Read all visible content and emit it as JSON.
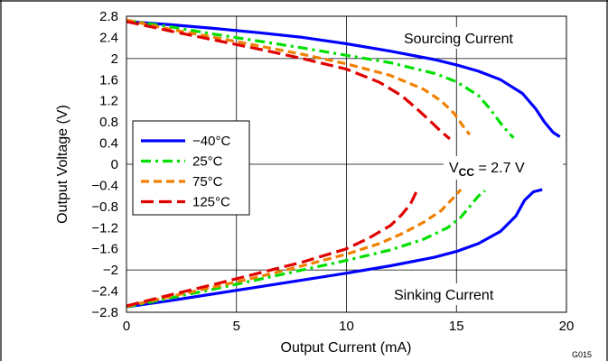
{
  "chart_data": {
    "type": "line",
    "xlabel": "Output Current (mA)",
    "ylabel": "Output Voltage (V)",
    "xlim": [
      0,
      20
    ],
    "ylim": [
      -2.8,
      2.8
    ],
    "x_ticks": [
      "0",
      "5",
      "10",
      "15",
      "20"
    ],
    "y_ticks": [
      "2.8",
      "2.4",
      "2",
      "1.6",
      "1.2",
      "0.8",
      "0.4",
      "0",
      "−0.4",
      "−0.8",
      "−1.2",
      "−1.6",
      "−2",
      "−2.4",
      "−2.8"
    ],
    "grid": true,
    "legend_position": "left",
    "annotations": {
      "sourcing": "Sourcing Current",
      "sinking": "Sinking Current",
      "vcc_prefix": "V",
      "vcc_sub": "CC",
      "vcc_value": " =  2.7 V",
      "figure_code": "G015"
    },
    "series": [
      {
        "name": "−40°C",
        "color": "#0000ff",
        "dash": "solid",
        "sourcing": [
          [
            0,
            2.7
          ],
          [
            2,
            2.64
          ],
          [
            4,
            2.57
          ],
          [
            6,
            2.49
          ],
          [
            8,
            2.4
          ],
          [
            10,
            2.28
          ],
          [
            12,
            2.14
          ],
          [
            14,
            1.98
          ],
          [
            15,
            1.88
          ],
          [
            16,
            1.76
          ],
          [
            17,
            1.6
          ],
          [
            18,
            1.34
          ],
          [
            18.6,
            1.05
          ],
          [
            19,
            0.8
          ],
          [
            19.4,
            0.6
          ],
          [
            19.7,
            0.52
          ]
        ],
        "sinking": [
          [
            0,
            -2.7
          ],
          [
            2,
            -2.58
          ],
          [
            4,
            -2.45
          ],
          [
            6,
            -2.32
          ],
          [
            8,
            -2.19
          ],
          [
            10,
            -2.06
          ],
          [
            12,
            -1.92
          ],
          [
            14,
            -1.76
          ],
          [
            15,
            -1.65
          ],
          [
            16,
            -1.5
          ],
          [
            17,
            -1.27
          ],
          [
            17.7,
            -0.98
          ],
          [
            18.1,
            -0.68
          ],
          [
            18.5,
            -0.52
          ],
          [
            18.9,
            -0.48
          ]
        ]
      },
      {
        "name": "25°C",
        "color": "#00e000",
        "dash": "dash-dot",
        "sourcing": [
          [
            0,
            2.72
          ],
          [
            2,
            2.6
          ],
          [
            4,
            2.46
          ],
          [
            6,
            2.33
          ],
          [
            8,
            2.2
          ],
          [
            10,
            2.06
          ],
          [
            12,
            1.92
          ],
          [
            14,
            1.72
          ],
          [
            15,
            1.56
          ],
          [
            16,
            1.3
          ],
          [
            16.5,
            1.06
          ],
          [
            17,
            0.78
          ],
          [
            17.4,
            0.58
          ],
          [
            17.6,
            0.5
          ]
        ],
        "sinking": [
          [
            0,
            -2.7
          ],
          [
            2,
            -2.53
          ],
          [
            4,
            -2.36
          ],
          [
            6,
            -2.18
          ],
          [
            8,
            -2.0
          ],
          [
            10,
            -1.82
          ],
          [
            12,
            -1.62
          ],
          [
            13.5,
            -1.42
          ],
          [
            14.6,
            -1.2
          ],
          [
            15.2,
            -1.0
          ],
          [
            15.6,
            -0.8
          ],
          [
            16,
            -0.6
          ],
          [
            16.3,
            -0.5
          ]
        ]
      },
      {
        "name": "75°C",
        "color": "#f08000",
        "dash": "dash",
        "sourcing": [
          [
            0,
            2.73
          ],
          [
            2,
            2.55
          ],
          [
            4,
            2.4
          ],
          [
            6,
            2.24
          ],
          [
            8,
            2.08
          ],
          [
            10,
            1.9
          ],
          [
            12,
            1.68
          ],
          [
            13.5,
            1.42
          ],
          [
            14.3,
            1.2
          ],
          [
            14.9,
            0.96
          ],
          [
            15.3,
            0.72
          ],
          [
            15.6,
            0.56
          ]
        ],
        "sinking": [
          [
            0,
            -2.69
          ],
          [
            2,
            -2.5
          ],
          [
            4,
            -2.32
          ],
          [
            6,
            -2.13
          ],
          [
            8,
            -1.92
          ],
          [
            10,
            -1.7
          ],
          [
            11.5,
            -1.5
          ],
          [
            12.6,
            -1.3
          ],
          [
            13.5,
            -1.1
          ],
          [
            14.3,
            -0.88
          ],
          [
            14.8,
            -0.66
          ],
          [
            15.2,
            -0.48
          ]
        ]
      },
      {
        "name": "125°C",
        "color": "#e00000",
        "dash": "long-dash",
        "sourcing": [
          [
            0,
            2.7
          ],
          [
            2,
            2.52
          ],
          [
            4,
            2.35
          ],
          [
            6,
            2.18
          ],
          [
            8,
            2.0
          ],
          [
            10,
            1.8
          ],
          [
            11.5,
            1.55
          ],
          [
            12.5,
            1.3
          ],
          [
            13.2,
            1.05
          ],
          [
            13.8,
            0.82
          ],
          [
            14.3,
            0.62
          ],
          [
            14.7,
            0.48
          ]
        ],
        "sinking": [
          [
            0,
            -2.68
          ],
          [
            2,
            -2.47
          ],
          [
            4,
            -2.27
          ],
          [
            6,
            -2.06
          ],
          [
            8,
            -1.85
          ],
          [
            10,
            -1.6
          ],
          [
            11,
            -1.4
          ],
          [
            12,
            -1.16
          ],
          [
            12.5,
            -0.96
          ],
          [
            12.9,
            -0.76
          ],
          [
            13.2,
            -0.5
          ]
        ]
      }
    ]
  }
}
